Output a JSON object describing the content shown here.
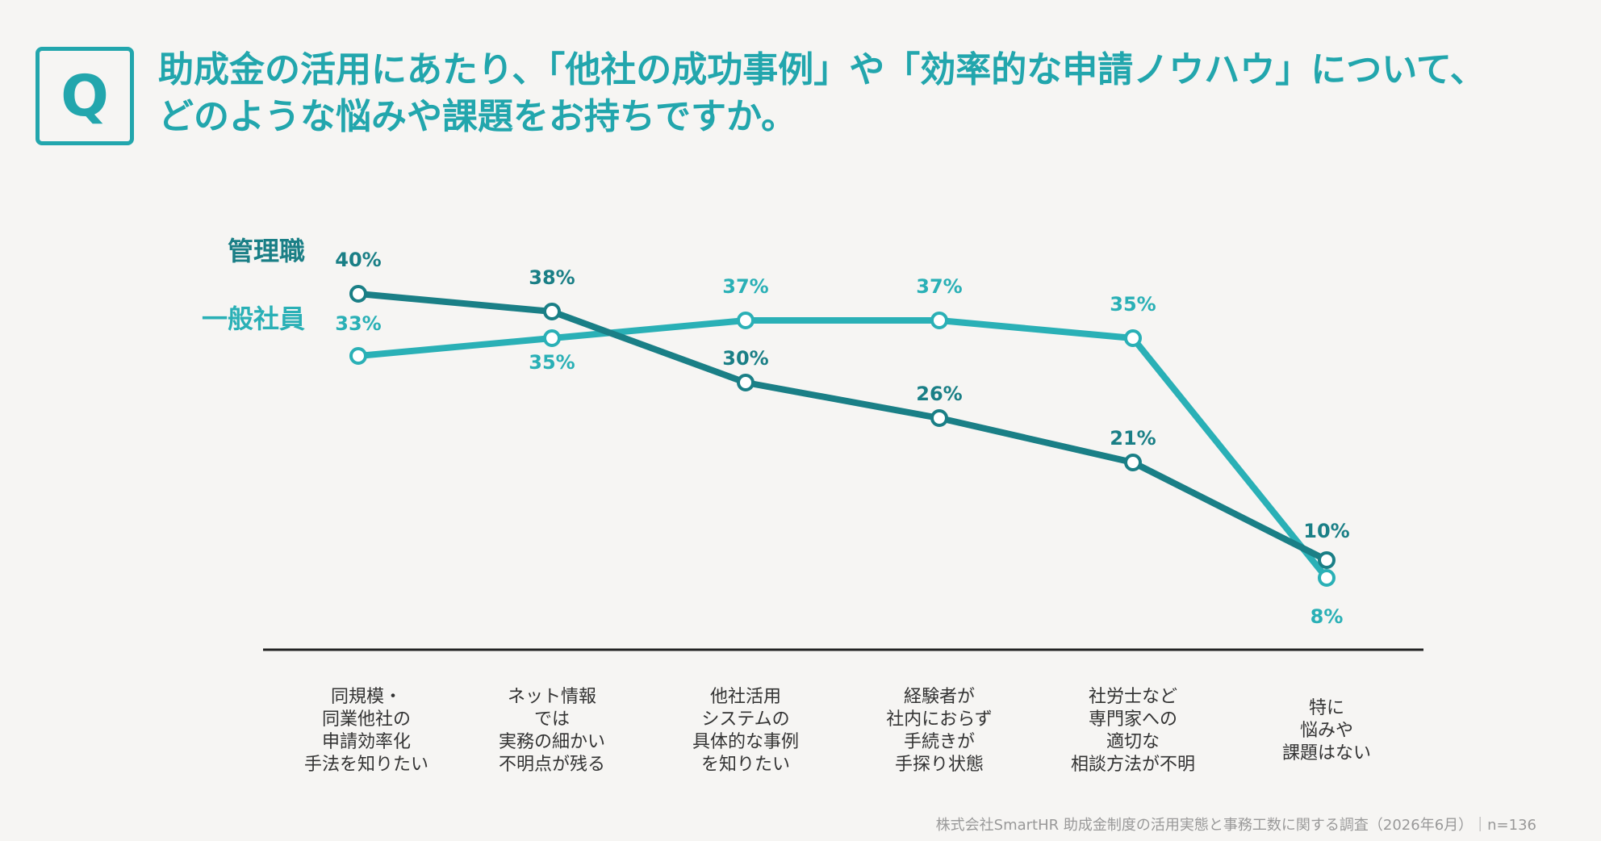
{
  "header": {
    "q_mark": "Q",
    "question_line1": "助成金の活用にあたり、「他社の成功事例」や「効率的な申請ノウハウ」について、",
    "question_line2": "どのような悩みや課題をお持ちですか。"
  },
  "chart_data": {
    "type": "line",
    "categories": [
      "同規模・\n同業他社の\n申請効率化\n手法を知りたい",
      "ネット情報\nでは\n実務の細かい\n不明点が残る",
      "他社活用\nシステムの\n具体的な事例\nを知りたい",
      "経験者が\n社内におらず\n手続きが\n手探り状態",
      "社労士など\n専門家への\n適切な\n相談方法が不明",
      "特に\n悩みや\n課題はない"
    ],
    "series": [
      {
        "name": "管理職",
        "values": [
          40,
          38,
          30,
          26,
          21,
          10
        ],
        "labels": [
          "40%",
          "38%",
          "30%",
          "26%",
          "21%",
          "10%"
        ],
        "color": "#1a7f86"
      },
      {
        "name": "一般社員",
        "values": [
          33,
          35,
          37,
          37,
          35,
          8
        ],
        "labels": [
          "33%",
          "35%",
          "37%",
          "37%",
          "35%",
          "8%"
        ],
        "color": "#2ab0b6"
      }
    ],
    "ylim": [
      0,
      45
    ],
    "grid": false,
    "legend": "left"
  },
  "footer": {
    "source": "株式会社SmartHR 助成金制度の活用実態と事務工数に関する調査（2026年6月）｜n=136"
  }
}
